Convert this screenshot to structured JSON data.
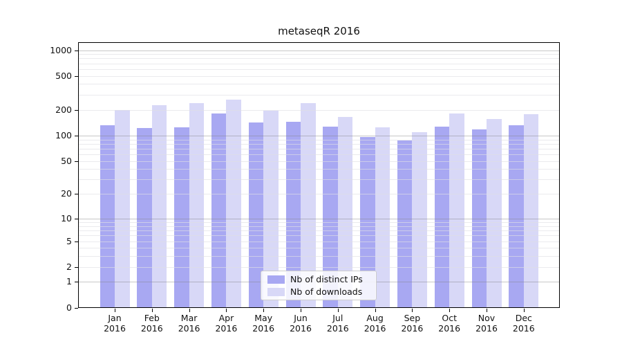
{
  "chart_data": {
    "type": "bar",
    "title": "metaseqR 2016",
    "categories": [
      "Jan",
      "Feb",
      "Mar",
      "Apr",
      "May",
      "Jun",
      "Jul",
      "Aug",
      "Sep",
      "Oct",
      "Nov",
      "Dec"
    ],
    "year": "2016",
    "series": [
      {
        "name": "Nb of distinct IPs",
        "color": "#a8a8f2",
        "values": [
          132,
          123,
          124,
          181,
          141,
          146,
          128,
          96,
          88,
          127,
          118,
          132
        ]
      },
      {
        "name": "Nb of downloads",
        "color": "#d8d8f7",
        "values": [
          199,
          224,
          237,
          261,
          196,
          240,
          164,
          124,
          110,
          181,
          155,
          177
        ]
      }
    ],
    "y_axis": {
      "scale": "log-like (linear 0-1, logarithmic above)",
      "tick_labels": [
        0,
        1,
        2,
        5,
        10,
        20,
        50,
        100,
        200,
        500,
        1000
      ],
      "ylim": [
        0,
        1220
      ],
      "grid": true
    },
    "legend_position": "bottom-center"
  },
  "colors": {
    "background": "#ffffff",
    "bar_distinct_ips": "#a8a8f2",
    "bar_downloads": "#d8d8f7",
    "axis": "#000000",
    "grid_major": "#9a9a9a",
    "grid_minor": "#e9e9ec",
    "legend_border": "#cccccc"
  }
}
